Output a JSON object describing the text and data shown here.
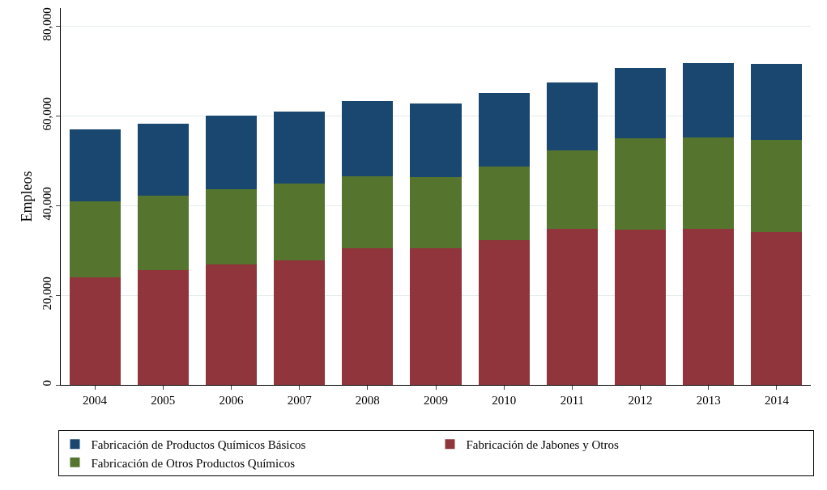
{
  "chart_data": {
    "type": "bar",
    "stacked": true,
    "ylabel": "Empleos",
    "categories": [
      "2004",
      "2005",
      "2006",
      "2007",
      "2008",
      "2009",
      "2010",
      "2011",
      "2012",
      "2013",
      "2014"
    ],
    "series": [
      {
        "name": "Fabricación de Jabones y Otros",
        "color": "#90353b",
        "values": [
          24000,
          25600,
          26900,
          27800,
          30400,
          30400,
          32200,
          34800,
          34600,
          34800,
          34000
        ]
      },
      {
        "name": "Fabricación de Otros Productos Químicos",
        "color": "#55752f",
        "values": [
          17000,
          16500,
          16800,
          17000,
          16100,
          15900,
          16500,
          17400,
          20300,
          20300,
          20600
        ]
      },
      {
        "name": "Fabricación de Productos Químicos Básicos",
        "color": "#1a476f",
        "values": [
          15900,
          16100,
          16300,
          16200,
          16700,
          16500,
          16300,
          15200,
          15800,
          16700,
          17000
        ]
      }
    ],
    "ylim": [
      0,
      84000
    ],
    "yticks": [
      {
        "value": 0,
        "label": "0"
      },
      {
        "value": 20000,
        "label": "20,000"
      },
      {
        "value": 40000,
        "label": "40,000"
      },
      {
        "value": 60000,
        "label": "60,000"
      },
      {
        "value": 80000,
        "label": "80,000"
      }
    ],
    "grid": "y",
    "legend": "bottom"
  }
}
